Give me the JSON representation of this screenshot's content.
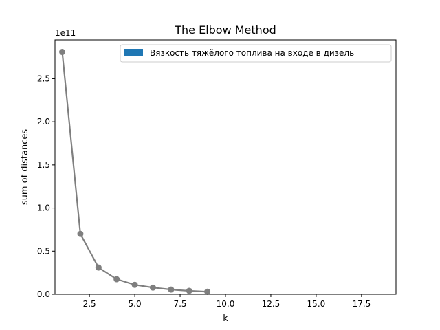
{
  "chart_data": {
    "type": "line",
    "title": "The Elbow Method",
    "xlabel": "k",
    "ylabel": "sum of distances",
    "y_offset_label": "1e11",
    "xlim": [
      0.6,
      19.4
    ],
    "ylim": [
      0,
      2.95
    ],
    "x_ticks": [
      2.5,
      5.0,
      7.5,
      10.0,
      12.5,
      15.0,
      17.5
    ],
    "x_tick_labels": [
      "2.5",
      "5.0",
      "7.5",
      "10.0",
      "12.5",
      "15.0",
      "17.5"
    ],
    "y_ticks": [
      0.0,
      0.5,
      1.0,
      1.5,
      2.0,
      2.5
    ],
    "y_tick_labels": [
      "0.0",
      "0.5",
      "1.0",
      "1.5",
      "2.0",
      "2.5"
    ],
    "grid": false,
    "legend_position": "top-right",
    "series": [
      {
        "name": "Вязкость тяжёлого топлива на входе в дизель",
        "color": "#7f7f7f",
        "legend_color": "#1f77b4",
        "x": [
          1,
          2,
          3,
          4,
          5,
          6,
          7,
          8,
          9
        ],
        "y": [
          2.81,
          0.7,
          0.31,
          0.175,
          0.11,
          0.078,
          0.055,
          0.04,
          0.03
        ]
      }
    ]
  }
}
